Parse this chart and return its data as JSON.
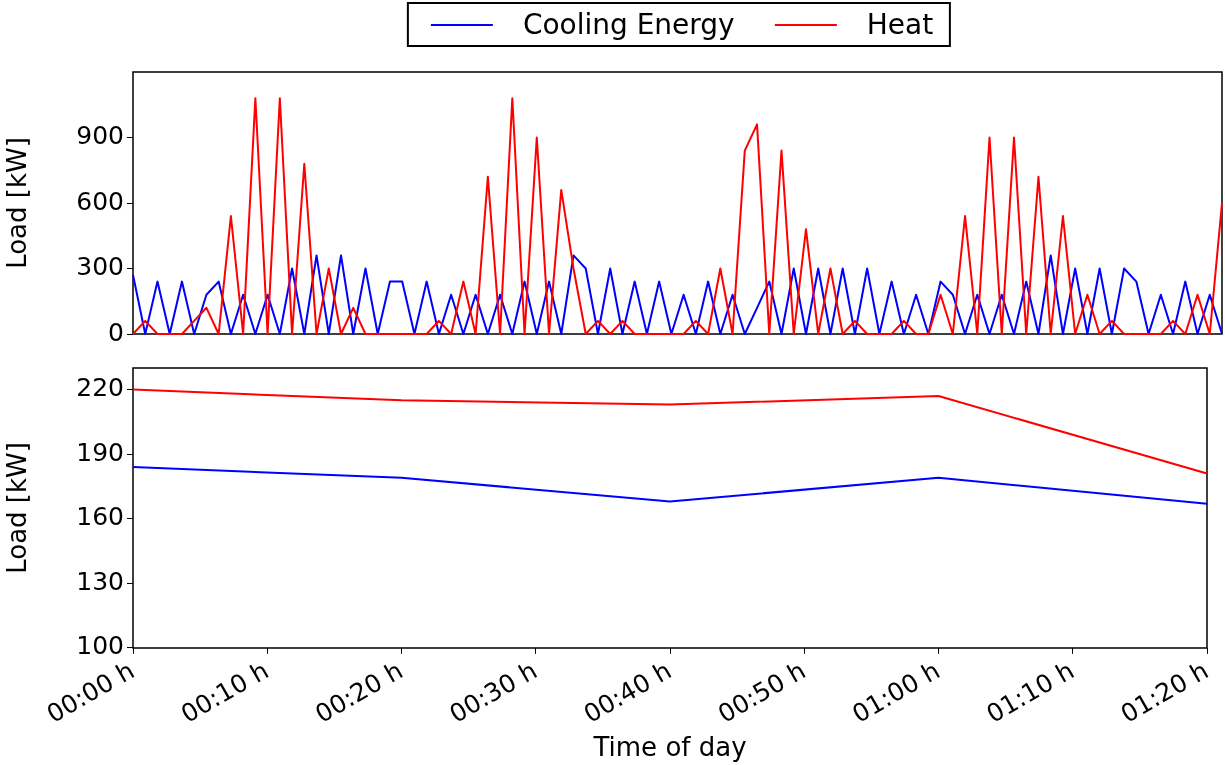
{
  "chart_data": [
    {
      "type": "line",
      "ylabel": "Load [kW]",
      "legend": "top",
      "tick_labels": "y",
      "grid": false,
      "line_style": "solid",
      "ylim": [
        0,
        1200
      ],
      "yticks": [
        0,
        300,
        600,
        900
      ],
      "categories": [
        null,
        null,
        null,
        null,
        null,
        null,
        null,
        null,
        null,
        null,
        null,
        null,
        null,
        null,
        null,
        null,
        null,
        null,
        null,
        null,
        null,
        null,
        null,
        null,
        null,
        null,
        null,
        null,
        null,
        null,
        null,
        null,
        null,
        null,
        null,
        null,
        null,
        null,
        null,
        null,
        null,
        null,
        null,
        null,
        null,
        null,
        null,
        null,
        null,
        null,
        null,
        null,
        null,
        null,
        null,
        null,
        null,
        null,
        null,
        null,
        null,
        null,
        null,
        null,
        null,
        null,
        null,
        null,
        null,
        null,
        null,
        null,
        null,
        null,
        null,
        null,
        null,
        null,
        null,
        null,
        null,
        null,
        null,
        null,
        null,
        null,
        null,
        null,
        null,
        null
      ],
      "series": [
        {
          "name": "Cooling Energy",
          "color": "#0000ff",
          "values": [
            270,
            0,
            240,
            0,
            240,
            0,
            180,
            240,
            0,
            180,
            0,
            180,
            0,
            300,
            0,
            360,
            0,
            360,
            0,
            300,
            0,
            240,
            240,
            0,
            240,
            0,
            180,
            0,
            180,
            0,
            180,
            0,
            240,
            0,
            240,
            0,
            360,
            300,
            0,
            300,
            0,
            240,
            0,
            240,
            0,
            180,
            0,
            240,
            0,
            180,
            0,
            120,
            240,
            0,
            300,
            0,
            300,
            0,
            300,
            0,
            300,
            0,
            240,
            0,
            180,
            0,
            240,
            180,
            0,
            180,
            0,
            180,
            0,
            240,
            0,
            360,
            0,
            300,
            0,
            300,
            0,
            300,
            240,
            0,
            180,
            0,
            240,
            0,
            180,
            0
          ]
        },
        {
          "name": "Heat",
          "color": "#ff0000",
          "values": [
            0,
            60,
            0,
            0,
            0,
            60,
            120,
            0,
            540,
            0,
            1080,
            0,
            1080,
            0,
            780,
            0,
            300,
            0,
            120,
            0,
            0,
            0,
            0,
            0,
            0,
            60,
            0,
            240,
            0,
            720,
            0,
            1080,
            0,
            900,
            0,
            660,
            300,
            0,
            60,
            0,
            60,
            0,
            0,
            0,
            0,
            0,
            60,
            0,
            300,
            0,
            840,
            960,
            0,
            840,
            0,
            480,
            0,
            300,
            0,
            60,
            0,
            0,
            0,
            60,
            0,
            0,
            180,
            0,
            540,
            0,
            900,
            0,
            900,
            0,
            720,
            0,
            540,
            0,
            180,
            0,
            60,
            0,
            0,
            0,
            0,
            60,
            0,
            180,
            0,
            600
          ]
        }
      ]
    },
    {
      "type": "line",
      "xlabel": "Time of day",
      "ylabel": "Load [kW]",
      "grid": false,
      "line_style": "solid",
      "ylim": [
        100,
        230
      ],
      "yticks": [
        100,
        130,
        160,
        190,
        220
      ],
      "categories": [
        "00:00 h",
        "00:10 h",
        "00:20 h",
        "00:30 h",
        "00:40 h",
        "00:50 h",
        "01:00 h",
        "01:10 h",
        "01:20 h"
      ],
      "series": [
        {
          "color": "#0000ff",
          "x": [
            "00:00 h",
            "00:20 h",
            "00:40 h",
            "01:00 h",
            "01:20 h"
          ],
          "values": [
            184,
            179,
            168,
            179,
            167
          ]
        },
        {
          "color": "#ff0000",
          "x": [
            "00:00 h",
            "00:20 h",
            "00:40 h",
            "01:00 h",
            "01:20 h"
          ],
          "values": [
            220,
            215,
            213,
            217,
            181
          ]
        }
      ]
    }
  ]
}
